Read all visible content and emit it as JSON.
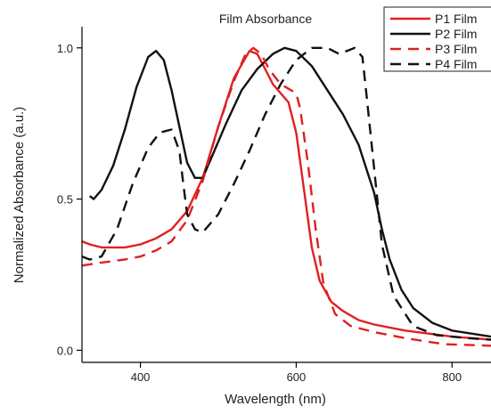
{
  "chart_data": {
    "type": "line",
    "title": "Film Absorbance",
    "xlabel": "Wavelength (nm)",
    "ylabel": "Normalized Absorbance (a.u.)",
    "xlim": [
      325,
      850
    ],
    "ylim": [
      -0.04,
      1.07
    ],
    "xticks": [
      400,
      600,
      800
    ],
    "yticks": [
      0.0,
      0.5,
      1.0
    ],
    "xtick_labels": [
      "400",
      "600",
      "800"
    ],
    "ytick_labels": [
      "0.0",
      "0.5",
      "1.0"
    ],
    "grid": false,
    "legend_position": "top-right",
    "series": [
      {
        "name": "P1 Film",
        "color": "#e02020",
        "dash": "solid",
        "points": [
          [
            325,
            0.36
          ],
          [
            335,
            0.35
          ],
          [
            350,
            0.34
          ],
          [
            380,
            0.34
          ],
          [
            400,
            0.35
          ],
          [
            420,
            0.37
          ],
          [
            440,
            0.4
          ],
          [
            460,
            0.46
          ],
          [
            480,
            0.57
          ],
          [
            500,
            0.74
          ],
          [
            520,
            0.9
          ],
          [
            540,
            0.99
          ],
          [
            550,
            0.98
          ],
          [
            560,
            0.93
          ],
          [
            570,
            0.88
          ],
          [
            580,
            0.85
          ],
          [
            590,
            0.82
          ],
          [
            600,
            0.72
          ],
          [
            610,
            0.53
          ],
          [
            620,
            0.34
          ],
          [
            630,
            0.23
          ],
          [
            645,
            0.16
          ],
          [
            660,
            0.13
          ],
          [
            680,
            0.1
          ],
          [
            700,
            0.085
          ],
          [
            740,
            0.065
          ],
          [
            800,
            0.045
          ],
          [
            850,
            0.035
          ]
        ]
      },
      {
        "name": "P2 Film",
        "color": "#111111",
        "dash": "solid",
        "points": [
          [
            335,
            0.51
          ],
          [
            340,
            0.5
          ],
          [
            350,
            0.53
          ],
          [
            365,
            0.61
          ],
          [
            380,
            0.73
          ],
          [
            395,
            0.87
          ],
          [
            410,
            0.97
          ],
          [
            420,
            0.99
          ],
          [
            430,
            0.96
          ],
          [
            440,
            0.86
          ],
          [
            450,
            0.74
          ],
          [
            460,
            0.62
          ],
          [
            470,
            0.57
          ],
          [
            480,
            0.57
          ],
          [
            490,
            0.63
          ],
          [
            510,
            0.75
          ],
          [
            530,
            0.86
          ],
          [
            550,
            0.93
          ],
          [
            570,
            0.98
          ],
          [
            585,
            1.0
          ],
          [
            600,
            0.99
          ],
          [
            620,
            0.94
          ],
          [
            640,
            0.86
          ],
          [
            660,
            0.78
          ],
          [
            680,
            0.68
          ],
          [
            700,
            0.52
          ],
          [
            710,
            0.4
          ],
          [
            720,
            0.3
          ],
          [
            735,
            0.2
          ],
          [
            750,
            0.14
          ],
          [
            775,
            0.09
          ],
          [
            800,
            0.065
          ],
          [
            850,
            0.045
          ]
        ]
      },
      {
        "name": "P3 Film",
        "color": "#e02020",
        "dash": "dashed",
        "points": [
          [
            325,
            0.28
          ],
          [
            350,
            0.29
          ],
          [
            380,
            0.3
          ],
          [
            400,
            0.31
          ],
          [
            420,
            0.33
          ],
          [
            440,
            0.36
          ],
          [
            460,
            0.43
          ],
          [
            480,
            0.56
          ],
          [
            500,
            0.74
          ],
          [
            520,
            0.89
          ],
          [
            535,
            0.98
          ],
          [
            545,
            1.0
          ],
          [
            555,
            0.98
          ],
          [
            565,
            0.93
          ],
          [
            580,
            0.88
          ],
          [
            600,
            0.85
          ],
          [
            605,
            0.8
          ],
          [
            615,
            0.62
          ],
          [
            625,
            0.4
          ],
          [
            635,
            0.22
          ],
          [
            650,
            0.12
          ],
          [
            670,
            0.08
          ],
          [
            700,
            0.06
          ],
          [
            740,
            0.04
          ],
          [
            790,
            0.02
          ],
          [
            850,
            0.015
          ]
        ]
      },
      {
        "name": "P4 Film",
        "color": "#111111",
        "dash": "dashed",
        "points": [
          [
            325,
            0.31
          ],
          [
            335,
            0.3
          ],
          [
            350,
            0.31
          ],
          [
            370,
            0.4
          ],
          [
            390,
            0.55
          ],
          [
            410,
            0.67
          ],
          [
            425,
            0.72
          ],
          [
            440,
            0.73
          ],
          [
            450,
            0.66
          ],
          [
            455,
            0.55
          ],
          [
            460,
            0.45
          ],
          [
            470,
            0.4
          ],
          [
            480,
            0.39
          ],
          [
            500,
            0.45
          ],
          [
            520,
            0.55
          ],
          [
            540,
            0.66
          ],
          [
            560,
            0.78
          ],
          [
            580,
            0.88
          ],
          [
            600,
            0.96
          ],
          [
            620,
            1.0
          ],
          [
            640,
            1.0
          ],
          [
            655,
            0.98
          ],
          [
            665,
            0.99
          ],
          [
            675,
            1.0
          ],
          [
            685,
            0.97
          ],
          [
            690,
            0.85
          ],
          [
            700,
            0.6
          ],
          [
            710,
            0.35
          ],
          [
            725,
            0.18
          ],
          [
            750,
            0.08
          ],
          [
            780,
            0.05
          ],
          [
            820,
            0.04
          ],
          [
            850,
            0.035
          ]
        ]
      }
    ]
  }
}
